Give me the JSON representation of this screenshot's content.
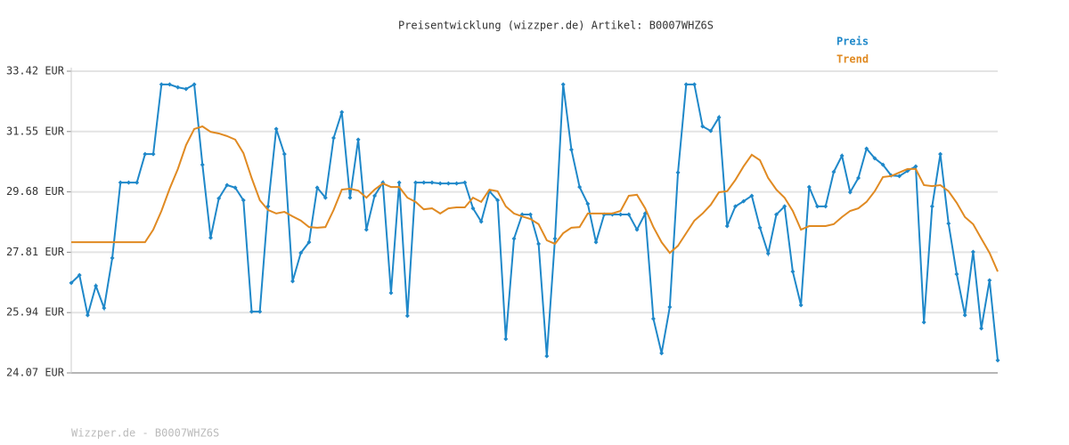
{
  "chart_data": {
    "type": "line",
    "title": "Preisentwicklung (wizzper.de) Artikel: B0007WHZ6S",
    "footer": "Wizzper.de - B0007WHZ6S",
    "ylim": [
      24.07,
      33.42
    ],
    "yticks": [
      {
        "value": 24.07,
        "label": "24.07 EUR"
      },
      {
        "value": 25.94,
        "label": "25.94 EUR"
      },
      {
        "value": 27.81,
        "label": "27.81 EUR"
      },
      {
        "value": 29.68,
        "label": "29.68 EUR"
      },
      {
        "value": 31.55,
        "label": "31.55 EUR"
      },
      {
        "value": 33.42,
        "label": "33.42 EUR"
      }
    ],
    "grid": true,
    "legend": "top-right",
    "series": [
      {
        "name": "Preis",
        "color": "#1f88c9",
        "markers": true,
        "values": [
          26.86,
          27.1,
          25.86,
          26.77,
          26.08,
          27.63,
          29.97,
          29.97,
          29.97,
          30.85,
          30.85,
          33.01,
          33.01,
          32.92,
          32.87,
          33.01,
          30.52,
          28.26,
          29.48,
          29.89,
          29.81,
          29.42,
          25.97,
          25.97,
          29.23,
          31.63,
          30.85,
          26.91,
          27.79,
          28.12,
          29.81,
          29.5,
          31.35,
          32.15,
          29.5,
          31.3,
          28.51,
          29.56,
          29.97,
          26.55,
          29.97,
          25.84,
          29.97,
          29.97,
          29.97,
          29.94,
          29.94,
          29.94,
          29.97,
          29.17,
          28.76,
          29.7,
          29.42,
          25.12,
          28.23,
          28.98,
          28.98,
          28.07,
          24.59,
          28.23,
          33.01,
          30.99,
          29.83,
          29.31,
          28.12,
          28.98,
          28.98,
          28.98,
          28.98,
          28.51,
          29.01,
          25.75,
          24.68,
          26.11,
          30.28,
          33.01,
          33.01,
          31.71,
          31.57,
          31.99,
          28.62,
          29.23,
          29.39,
          29.56,
          28.57,
          27.77,
          28.98,
          29.23,
          27.21,
          26.17,
          29.83,
          29.23,
          29.23,
          30.3,
          30.8,
          29.67,
          30.11,
          31.02,
          30.72,
          30.52,
          30.19,
          30.17,
          30.33,
          30.47,
          25.64,
          29.23,
          30.85,
          28.7,
          27.13,
          25.86,
          27.82,
          25.45,
          26.94,
          24.46
        ]
      },
      {
        "name": "Trend",
        "color": "#e08a22",
        "markers": false,
        "values": [
          28.12,
          28.12,
          28.12,
          28.12,
          28.12,
          28.12,
          28.12,
          28.12,
          28.12,
          28.12,
          28.51,
          29.09,
          29.78,
          30.39,
          31.13,
          31.63,
          31.71,
          31.54,
          31.49,
          31.41,
          31.3,
          30.88,
          30.11,
          29.42,
          29.12,
          29.01,
          29.06,
          28.92,
          28.79,
          28.59,
          28.57,
          28.59,
          29.12,
          29.75,
          29.78,
          29.72,
          29.5,
          29.75,
          29.94,
          29.83,
          29.83,
          29.5,
          29.37,
          29.14,
          29.17,
          29.01,
          29.17,
          29.2,
          29.2,
          29.5,
          29.37,
          29.75,
          29.7,
          29.23,
          29.01,
          28.92,
          28.84,
          28.68,
          28.18,
          28.07,
          28.4,
          28.57,
          28.59,
          29.01,
          29.01,
          29.01,
          29.01,
          29.09,
          29.56,
          29.59,
          29.17,
          28.59,
          28.12,
          27.79,
          28.01,
          28.4,
          28.79,
          29.01,
          29.28,
          29.67,
          29.7,
          30.05,
          30.47,
          30.83,
          30.66,
          30.11,
          29.75,
          29.5,
          29.09,
          28.51,
          28.62,
          28.62,
          28.62,
          28.68,
          28.9,
          29.09,
          29.17,
          29.37,
          29.7,
          30.14,
          30.17,
          30.28,
          30.39,
          30.39,
          29.89,
          29.86,
          29.89,
          29.7,
          29.34,
          28.9,
          28.68,
          28.23,
          27.79,
          27.21
        ]
      }
    ]
  }
}
